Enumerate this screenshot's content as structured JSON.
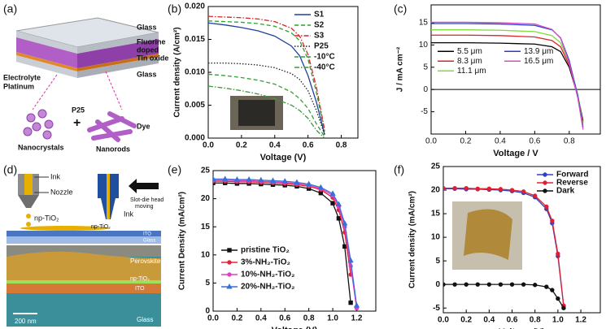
{
  "panel_labels": [
    "(a)",
    "(b)",
    "(c)",
    "(d)",
    "(e)",
    "(f)"
  ],
  "diagram_a": {
    "glass_top": "Glass",
    "fto": [
      "Fluorine",
      "doped",
      "Tin oxide"
    ],
    "glass_bottom": "Glass",
    "electrolyte": "Electrolyte",
    "platinum": "Platinum",
    "p25": "P25",
    "plus": "+",
    "nanocrystals": "Nanocrystals",
    "nanorods": "Nanorods",
    "dye": "Dye"
  },
  "diagram_d": {
    "ink_1": "Ink",
    "nozzle": "Nozzle",
    "np_tio2_1": "np-TiO₂",
    "slot_die": [
      "Slot-die head",
      "moving"
    ],
    "ink_2": "Ink",
    "np_tio2_2": "np-TiO₂",
    "ito_1": "ITO",
    "glass_1": "Glass",
    "perovskite": "Perovskite",
    "np_tio2_3": "np-TiO₂",
    "ito_2": "ITO",
    "scale": "200 nm",
    "glass_2": "Glass"
  },
  "chart_data": [
    {
      "type": "line",
      "x_label": "Voltage (V)",
      "y_label": "Current density (A/cm²)",
      "legend": "upper right",
      "x": [
        0,
        0.1,
        0.2,
        0.3,
        0.4,
        0.5,
        0.55,
        0.6,
        0.65,
        0.7
      ],
      "xlim": [
        0,
        0.9
      ],
      "ylim": [
        0,
        0.02
      ],
      "xticks": [
        {
          "value": 0,
          "label": "0.0"
        },
        {
          "value": 0.2,
          "label": "0.2"
        },
        {
          "value": 0.4,
          "label": "0.4"
        },
        {
          "value": 0.6,
          "label": "0.6"
        },
        {
          "value": 0.8,
          "label": "0.8"
        }
      ],
      "yticks": [
        {
          "value": 0,
          "label": "0.000"
        },
        {
          "value": 0.005,
          "label": "0.005"
        },
        {
          "value": 0.01,
          "label": "0.010"
        },
        {
          "value": 0.015,
          "label": "0.015"
        },
        {
          "value": 0.02,
          "label": "0.020"
        }
      ],
      "series": [
        {
          "name": "S1",
          "color": "#1f3fa0",
          "dash": "solid",
          "marker": "none",
          "values": [
            0.0175,
            0.0172,
            0.0168,
            0.0163,
            0.0155,
            0.014,
            0.0125,
            0.0095,
            0.0055,
            0.0005
          ]
        },
        {
          "name": "S2",
          "color": "#2ca02c",
          "dash": "dashed",
          "marker": "none",
          "values": [
            0.0178,
            0.0177,
            0.0176,
            0.0174,
            0.017,
            0.016,
            0.0148,
            0.012,
            0.007,
            0.001
          ]
        },
        {
          "name": "S3",
          "color": "#d62728",
          "dash": "dashdot",
          "marker": "none",
          "values": [
            0.0185,
            0.0184,
            0.0183,
            0.0181,
            0.0177,
            0.0167,
            0.0155,
            0.0127,
            0.0078,
            0.0012
          ]
        },
        {
          "name": "P25",
          "color": "#222222",
          "dash": "dotted",
          "marker": "none",
          "values": [
            0.0114,
            0.0114,
            0.0113,
            0.0111,
            0.0107,
            0.0098,
            0.0089,
            0.0072,
            0.0042,
            0.0005
          ]
        },
        {
          "name": "-10°C",
          "color": "#3a9a3a",
          "dash": "dashed",
          "marker": "none",
          "values": [
            0.0097,
            0.0095,
            0.0092,
            0.0088,
            0.0082,
            0.007,
            0.006,
            0.0045,
            0.0022,
            0.0002
          ]
        },
        {
          "name": "-40°C",
          "color": "#3a9a3a",
          "dash": "dashdot",
          "marker": "none",
          "values": [
            0.0079,
            0.0076,
            0.0072,
            0.0067,
            0.006,
            0.005,
            0.0042,
            0.003,
            0.0012,
            0
          ]
        }
      ]
    },
    {
      "type": "line",
      "x_label": "Voltage / V",
      "y_label": "J / mA cm⁻²",
      "legend": "center left",
      "zero_line": true,
      "x": [
        0,
        0.2,
        0.4,
        0.6,
        0.7,
        0.75,
        0.8,
        0.85,
        0.88
      ],
      "xlim": [
        0,
        0.98
      ],
      "ylim": [
        -10,
        19
      ],
      "xticks": [
        {
          "value": 0,
          "label": "0.0"
        },
        {
          "value": 0.2,
          "label": "0.2"
        },
        {
          "value": 0.4,
          "label": "0.4"
        },
        {
          "value": 0.6,
          "label": "0.6"
        },
        {
          "value": 0.8,
          "label": "0.8"
        }
      ],
      "yticks": [
        -5,
        0,
        5,
        10,
        15
      ],
      "series": [
        {
          "name": "5.5 μm",
          "color": "#000000",
          "dash": "solid",
          "marker": "none",
          "values": [
            10.5,
            10.5,
            10.4,
            10.2,
            9.6,
            8.5,
            5,
            -1.5,
            -7
          ]
        },
        {
          "name": "8.3 μm",
          "color": "#e0202a",
          "dash": "solid",
          "marker": "none",
          "values": [
            12.2,
            12.2,
            12.1,
            11.8,
            11,
            9.6,
            5.5,
            -1.5,
            -7.5
          ]
        },
        {
          "name": "11.1 μm",
          "color": "#7fdc3a",
          "dash": "solid",
          "marker": "none",
          "values": [
            13.4,
            13.4,
            13.3,
            13,
            12.1,
            10.5,
            6,
            -1.2,
            -8
          ]
        },
        {
          "name": "13.9 μm",
          "color": "#2a3fd0",
          "dash": "solid",
          "marker": "none",
          "values": [
            14.8,
            14.8,
            14.7,
            14.4,
            13.4,
            11.6,
            6.5,
            -1.5,
            -8.5
          ]
        },
        {
          "name": "16.5 μm",
          "color": "#d050c8",
          "dash": "solid",
          "marker": "none",
          "values": [
            15.1,
            15.1,
            15,
            14.7,
            13.5,
            11.5,
            6,
            -2,
            -9
          ]
        }
      ]
    },
    {
      "type": "line",
      "x_label": "Voltage (V)",
      "y_label": "Current Density (mA/cm²)",
      "legend": "lower left",
      "x": [
        0,
        0.1,
        0.2,
        0.3,
        0.4,
        0.5,
        0.6,
        0.7,
        0.8,
        0.9,
        1.0,
        1.05,
        1.1,
        1.15,
        1.2
      ],
      "xlim": [
        0,
        1.36
      ],
      "ylim": [
        0,
        25
      ],
      "xticks": [
        {
          "value": 0,
          "label": "0.0"
        },
        {
          "value": 0.2,
          "label": "0.2"
        },
        {
          "value": 0.4,
          "label": "0.4"
        },
        {
          "value": 0.6,
          "label": "0.6"
        },
        {
          "value": 0.8,
          "label": "0.8"
        },
        {
          "value": 1,
          "label": "1.0"
        },
        {
          "value": 1.2,
          "label": "1.2"
        }
      ],
      "yticks": [
        0,
        5,
        10,
        15,
        20,
        25
      ],
      "series": [
        {
          "name": "pristine TiO₂",
          "color": "#111111",
          "dash": "solid",
          "marker": "square",
          "values": [
            22.8,
            22.8,
            22.7,
            22.7,
            22.6,
            22.5,
            22.4,
            22.2,
            21.8,
            21,
            19.2,
            16.5,
            11.5,
            1.5,
            null
          ]
        },
        {
          "name": "3%-NH₂-TiO₂",
          "color": "#e8203a",
          "dash": "solid",
          "marker": "circle",
          "values": [
            23.1,
            23.1,
            23,
            23,
            22.9,
            22.8,
            22.7,
            22.5,
            22.2,
            21.6,
            20.2,
            18,
            14,
            6.5,
            null
          ]
        },
        {
          "name": "10%-NH₂-TiO₂",
          "color": "#e040c0",
          "dash": "solid",
          "marker": "circle",
          "values": [
            23.3,
            23.3,
            23.2,
            23.2,
            23.1,
            23,
            22.9,
            22.7,
            22.4,
            21.8,
            20.6,
            18.6,
            15,
            8,
            0.5
          ]
        },
        {
          "name": "20%-NH₂-TiO₂",
          "color": "#3a6ed8",
          "dash": "solid",
          "marker": "triangle",
          "values": [
            23.5,
            23.5,
            23.4,
            23.4,
            23.3,
            23.2,
            23.1,
            22.9,
            22.6,
            22,
            20.9,
            19,
            15.6,
            9,
            1
          ]
        }
      ]
    },
    {
      "type": "line",
      "x_label": "Voltage (V)",
      "y_label": "Current density (mA/cm²)",
      "legend": "upper right",
      "x": [
        0,
        0.1,
        0.2,
        0.3,
        0.4,
        0.5,
        0.6,
        0.7,
        0.8,
        0.9,
        0.95,
        1.0,
        1.05
      ],
      "xlim": [
        0,
        1.37
      ],
      "ylim": [
        -6,
        25
      ],
      "xticks": [
        {
          "value": 0,
          "label": "0.0"
        },
        {
          "value": 0.2,
          "label": "0.2"
        },
        {
          "value": 0.4,
          "label": "0.4"
        },
        {
          "value": 0.6,
          "label": "0.6"
        },
        {
          "value": 0.8,
          "label": "0.8"
        },
        {
          "value": 1,
          "label": "1.0"
        },
        {
          "value": 1.2,
          "label": "1.2"
        }
      ],
      "yticks": [
        -5,
        0,
        5,
        10,
        15,
        20,
        25
      ],
      "series": [
        {
          "name": "Forward",
          "color": "#3040c0",
          "dash": "solid",
          "marker": "circle",
          "values": [
            20.3,
            20.3,
            20.2,
            20.2,
            20.1,
            20,
            19.8,
            19.4,
            18.5,
            16,
            13,
            6,
            -4.5
          ]
        },
        {
          "name": "Reverse",
          "color": "#e02030",
          "dash": "solid",
          "marker": "circle",
          "values": [
            20.4,
            20.4,
            20.4,
            20.3,
            20.3,
            20.2,
            20,
            19.7,
            18.8,
            16.5,
            13.5,
            6.5,
            -4.5
          ]
        },
        {
          "name": "Dark",
          "color": "#111111",
          "dash": "solid",
          "marker": "circle",
          "values": [
            0,
            0,
            0,
            0,
            0,
            0,
            0,
            0,
            -0.1,
            -0.5,
            -1.2,
            -3,
            -5
          ]
        }
      ]
    }
  ]
}
